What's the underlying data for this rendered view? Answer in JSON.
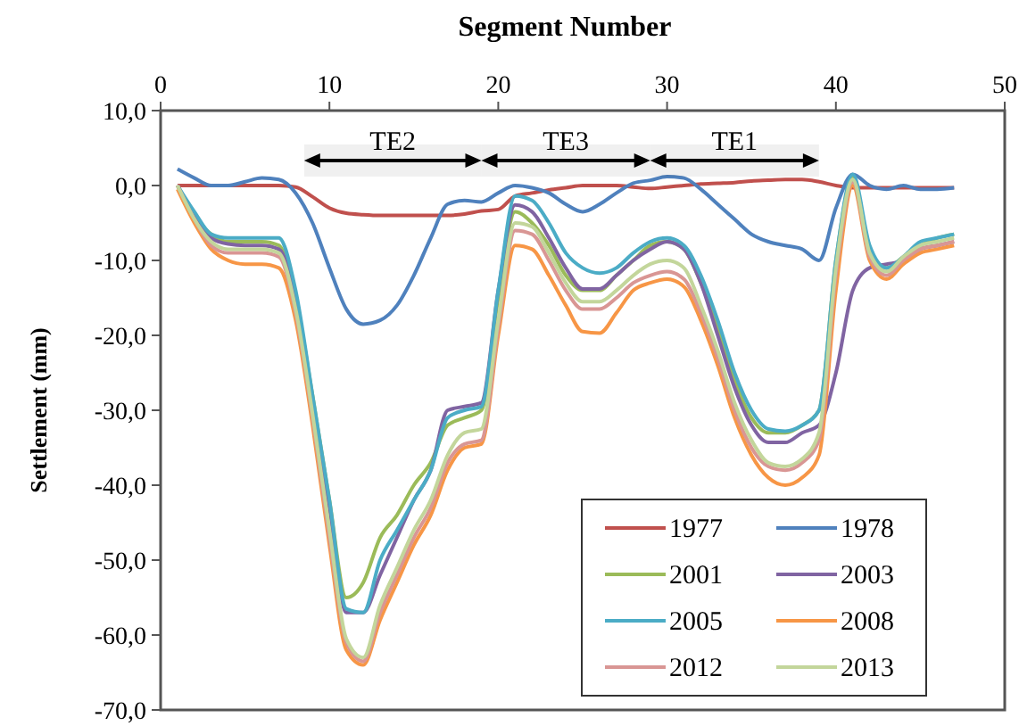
{
  "chart_data": {
    "type": "line",
    "xlabel": "Segment Number",
    "ylabel": "Settlement (mm)",
    "x": [
      1,
      2,
      3,
      4,
      5,
      6,
      7,
      8,
      9,
      10,
      11,
      12,
      13,
      14,
      15,
      16,
      17,
      18,
      19,
      20,
      21,
      22,
      23,
      24,
      25,
      26,
      27,
      28,
      29,
      30,
      31,
      32,
      33,
      34,
      35,
      36,
      37,
      38,
      39,
      40,
      41,
      42,
      43,
      44,
      45,
      46,
      47
    ],
    "series": [
      {
        "name": "1977",
        "color": "#c0504d",
        "values": [
          0,
          0,
          0,
          0,
          0,
          0,
          0,
          -0.2,
          -1.5,
          -3,
          -3.7,
          -3.9,
          -4,
          -4,
          -4,
          -4,
          -4,
          -3.8,
          -3.4,
          -3.2,
          -1.4,
          -1,
          -0.6,
          -0.3,
          0,
          0,
          0,
          -0.2,
          -0.4,
          -0.2,
          0,
          0.2,
          0.3,
          0.4,
          0.6,
          0.7,
          0.8,
          0.8,
          0.5,
          0,
          -0.3,
          -0.3,
          -0.3,
          -0.3,
          -0.3,
          -0.3,
          -0.3
        ]
      },
      {
        "name": "1978",
        "color": "#4f81bd",
        "values": [
          2.2,
          1,
          0,
          0,
          0.5,
          1,
          0.8,
          -1,
          -5,
          -11,
          -16.5,
          -18.5,
          -18,
          -16,
          -12,
          -7,
          -2.5,
          -2,
          -2.2,
          -1,
          0,
          -0.3,
          -1,
          -2.5,
          -3.5,
          -2.5,
          -1,
          0.3,
          0.7,
          1.2,
          1,
          -0.5,
          -2.5,
          -4.5,
          -6.5,
          -7.5,
          -8,
          -8.5,
          -10,
          -3,
          1.5,
          0,
          -0.5,
          0,
          -0.5,
          -0.5,
          -0.3
        ]
      },
      {
        "name": "2001",
        "color": "#9bbb59",
        "values": [
          0,
          -4,
          -6.5,
          -7.5,
          -7.5,
          -7.5,
          -8,
          -15,
          -28,
          -42,
          -55,
          -53,
          -47,
          -44,
          -40,
          -37,
          -32,
          -31,
          -30,
          -15,
          -3.5,
          -5,
          -8,
          -12,
          -14,
          -14,
          -12,
          -10,
          -8,
          -7.5,
          -8.5,
          -13,
          -19,
          -26,
          -31,
          -33,
          -33,
          -32,
          -30,
          -10,
          1,
          -9,
          -11,
          -9.5,
          -8,
          -7,
          -6.5
        ]
      },
      {
        "name": "2003",
        "color": "#8064a2",
        "values": [
          0,
          -4,
          -7,
          -7.8,
          -8,
          -8,
          -8.5,
          -15,
          -29,
          -43,
          -57,
          -57,
          -52,
          -47,
          -42,
          -38,
          -30,
          -29.5,
          -29,
          -14,
          -2.6,
          -3.5,
          -7,
          -11,
          -13.8,
          -13.8,
          -12,
          -10,
          -8.5,
          -7.5,
          -8.5,
          -13,
          -20,
          -27,
          -32,
          -34.3,
          -34.3,
          -33,
          -32,
          -25,
          -14,
          -11,
          -10.5,
          -10,
          -8.5,
          -8,
          -7.5
        ]
      },
      {
        "name": "2005",
        "color": "#4bacc6",
        "values": [
          0,
          -3.5,
          -6.5,
          -7,
          -7,
          -7,
          -7,
          -14,
          -28,
          -42,
          -56.5,
          -57,
          -50,
          -46,
          -42,
          -38,
          -31,
          -30,
          -29.5,
          -14,
          -1.4,
          -2,
          -5,
          -9,
          -11,
          -11.7,
          -11,
          -9,
          -7.5,
          -7,
          -8,
          -12,
          -18,
          -25,
          -30,
          -32.5,
          -32.8,
          -32,
          -30,
          -10,
          1.5,
          -8,
          -11,
          -9.5,
          -7.5,
          -7,
          -6.5
        ]
      },
      {
        "name": "2008",
        "color": "#f79646",
        "values": [
          -0.5,
          -5,
          -8.5,
          -10,
          -10.5,
          -10.5,
          -11,
          -18,
          -32,
          -48,
          -62,
          -64,
          -58,
          -53,
          -48,
          -44,
          -38,
          -35,
          -34.5,
          -20,
          -8,
          -8.5,
          -12,
          -16,
          -19.5,
          -19.7,
          -17,
          -14,
          -13,
          -12.5,
          -13.5,
          -18,
          -24,
          -31,
          -36,
          -39,
          -40,
          -39,
          -36,
          -14,
          0,
          -10,
          -12.5,
          -10.5,
          -9,
          -8.5,
          -8
        ]
      },
      {
        "name": "2012",
        "color": "#d99694",
        "values": [
          0,
          -4.5,
          -8,
          -9,
          -9,
          -9,
          -9.5,
          -17,
          -31,
          -47,
          -61,
          -63.5,
          -57,
          -52,
          -47,
          -43,
          -37,
          -34.5,
          -34,
          -19,
          -6,
          -6.5,
          -10,
          -14,
          -16.5,
          -16.5,
          -15,
          -13,
          -12,
          -11.5,
          -12.5,
          -17,
          -23,
          -30,
          -35,
          -37.5,
          -38,
          -37,
          -34,
          -12,
          0.5,
          -9.5,
          -12,
          -10,
          -8.5,
          -8,
          -7.5
        ]
      },
      {
        "name": "2013",
        "color": "#c3d69b",
        "values": [
          0,
          -4.5,
          -7.5,
          -8.5,
          -8.5,
          -8.5,
          -9,
          -16.5,
          -30.5,
          -46,
          -60.5,
          -63,
          -56,
          -51,
          -46,
          -42,
          -36,
          -33,
          -32.5,
          -18,
          -5,
          -5.5,
          -9,
          -13,
          -15.5,
          -15.5,
          -14,
          -12,
          -10.5,
          -10,
          -11,
          -16,
          -22,
          -29,
          -34,
          -37,
          -37.5,
          -36.5,
          -33,
          -11,
          0.8,
          -9,
          -11.5,
          -9.5,
          -8,
          -7.5,
          -7
        ]
      }
    ],
    "xlim": [
      0,
      50
    ],
    "xticks": [
      0,
      10,
      20,
      30,
      40,
      50
    ],
    "ylim": [
      -70,
      10
    ],
    "yticks": [
      {
        "value": 10,
        "label": "10,0"
      },
      {
        "value": 0,
        "label": "0,0"
      },
      {
        "value": -10,
        "label": "-10,0"
      },
      {
        "value": -20,
        "label": "-20,0"
      },
      {
        "value": -30,
        "label": "-30,0"
      },
      {
        "value": -40,
        "label": "-40,0"
      },
      {
        "value": -50,
        "label": "-50,0"
      },
      {
        "value": -60,
        "label": "-60,0"
      },
      {
        "value": -70,
        "label": "-70,0"
      }
    ],
    "bands": [
      {
        "axis": "x",
        "from": 8.5,
        "to": 19,
        "label": "TE2"
      },
      {
        "axis": "x",
        "from": 19,
        "to": 29,
        "label": "TE3"
      },
      {
        "axis": "x",
        "from": 29,
        "to": 39,
        "label": "TE1"
      }
    ],
    "grid": false,
    "legend": "bottom right",
    "line_style": "solid",
    "marker": "none"
  }
}
